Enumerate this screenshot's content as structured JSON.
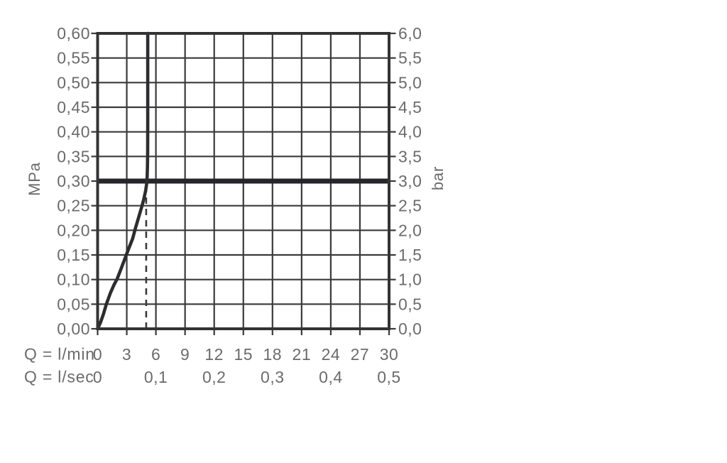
{
  "page": {
    "background": "#ffffff"
  },
  "chart_data": {
    "type": "line",
    "grid": true,
    "ylabel_left_unit": "MPa",
    "ylabel_right_unit": "bar",
    "xlabel_row1": "Q = l/min",
    "xlabel_row2": "Q = l/sec",
    "x_axis": {
      "min": 0,
      "max": 30,
      "ticks_lmin": {
        "values": [
          0,
          3,
          6,
          9,
          12,
          15,
          18,
          21,
          24,
          27,
          30
        ],
        "labels": [
          "0",
          "3",
          "6",
          "9",
          "12",
          "15",
          "18",
          "21",
          "24",
          "27",
          "30"
        ]
      },
      "ticks_lsec": {
        "values": [
          0,
          6,
          12,
          18,
          24,
          30
        ],
        "labels": [
          "0",
          "0,1",
          "0,2",
          "0,3",
          "0,4",
          "0,5"
        ]
      }
    },
    "y_axis": {
      "min": 0,
      "max": 0.6,
      "tick_values": [
        0.6,
        0.55,
        0.5,
        0.45,
        0.4,
        0.35,
        0.3,
        0.25,
        0.2,
        0.15,
        0.1,
        0.05,
        0.0
      ],
      "labels_mpa": [
        "0,60",
        "0,55",
        "0,50",
        "0,45",
        "0,40",
        "0,35",
        "0,30",
        "0,25",
        "0,20",
        "0,15",
        "0,10",
        "0,05",
        "0,00"
      ],
      "labels_bar": [
        "6,0",
        "5,5",
        "5,0",
        "4,5",
        "4,0",
        "3,5",
        "3,0",
        "2,5",
        "2,0",
        "1,5",
        "1,0",
        "0,5",
        "0,0"
      ]
    },
    "series": [
      {
        "name": "pressure-flow-curve",
        "points": [
          [
            0,
            0
          ],
          [
            0.3,
            0.013
          ],
          [
            0.6,
            0.03
          ],
          [
            0.9,
            0.05
          ],
          [
            1.3,
            0.072
          ],
          [
            1.7,
            0.09
          ],
          [
            2.0,
            0.101
          ],
          [
            2.4,
            0.121
          ],
          [
            2.8,
            0.142
          ],
          [
            3.2,
            0.163
          ],
          [
            3.6,
            0.183
          ],
          [
            3.9,
            0.205
          ],
          [
            4.2,
            0.225
          ],
          [
            4.5,
            0.245
          ],
          [
            4.75,
            0.263
          ],
          [
            4.95,
            0.281
          ],
          [
            5.05,
            0.295
          ],
          [
            5.1,
            0.31
          ],
          [
            5.13,
            0.33
          ],
          [
            5.15,
            0.36
          ],
          [
            5.16,
            0.42
          ],
          [
            5.16,
            0.5
          ],
          [
            5.16,
            0.6
          ]
        ]
      }
    ],
    "reference_line": {
      "y_mpa": 0.3,
      "y_bar": 3.0
    },
    "dashed_guide": {
      "x_lmin": 5.0,
      "from_y_mpa": 0.0,
      "to_y_mpa": 0.298
    },
    "colors": {
      "curve": "#2d2d2f",
      "grid": "#3a3a3c",
      "frame": "#333335",
      "reference_line": "#26262a",
      "dashed": "#3a3a3c",
      "tick_label": "#6b6b6b"
    }
  }
}
